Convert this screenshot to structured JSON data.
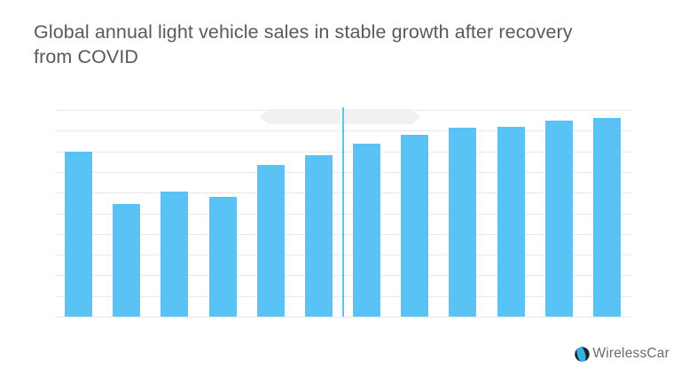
{
  "slide": {
    "title": "Global annual light vehicle sales in stable growth after recovery from COVID",
    "title_color": "#58595b",
    "background_color": "#ffffff"
  },
  "chart_data": {
    "type": "bar",
    "title": "Global annual light vehicle sales in stable growth after recovery from COVID",
    "xlabel": "",
    "ylabel": "",
    "x_tick_labels": [],
    "y_tick_labels": [],
    "legend": "none",
    "grid": "horizontal gridlines only",
    "gridline_count": 11,
    "ylim": [
      0,
      10
    ],
    "note": "No axis labels, tick labels or data labels are rendered in the image. Bar values are estimated in horizontal-gridline units: baseline = 0, each gridline = 1 unit, top gridline = 10. A vertical light-blue line splits the 12 bars into two groups of 6 (dip at bar 2 = COVID, steady growth after).",
    "categories": [
      "bar-01",
      "bar-02",
      "bar-03",
      "bar-04",
      "bar-05",
      "bar-06",
      "bar-07",
      "bar-08",
      "bar-09",
      "bar-10",
      "bar-11",
      "bar-12"
    ],
    "values": [
      8.0,
      5.45,
      6.05,
      5.8,
      7.35,
      7.8,
      8.35,
      8.8,
      9.15,
      9.2,
      9.5,
      9.6
    ],
    "bar_color": "#58c3f4",
    "gridline_color": "#e9e9e9",
    "annotations": {
      "divider_line": {
        "after_bar_index": 6,
        "color": "#5ac4f4",
        "description": "vertical light-blue line between 6th and 7th bar, from above top gridline down to baseline"
      },
      "ribbons": [
        {
          "side": "left-of-divider",
          "shape": "left-pointing-arrow-ribbon",
          "color": "#f1f1f1",
          "text": ""
        },
        {
          "side": "right-of-divider",
          "shape": "right-pointing-arrow-ribbon",
          "color": "#f1f1f1",
          "text": ""
        }
      ]
    }
  },
  "footer": {
    "brand": "WirelessCar",
    "brand_color": "#6b6b6b",
    "logo_dark": "#1e2228",
    "logo_blue": "#35b3e3"
  }
}
